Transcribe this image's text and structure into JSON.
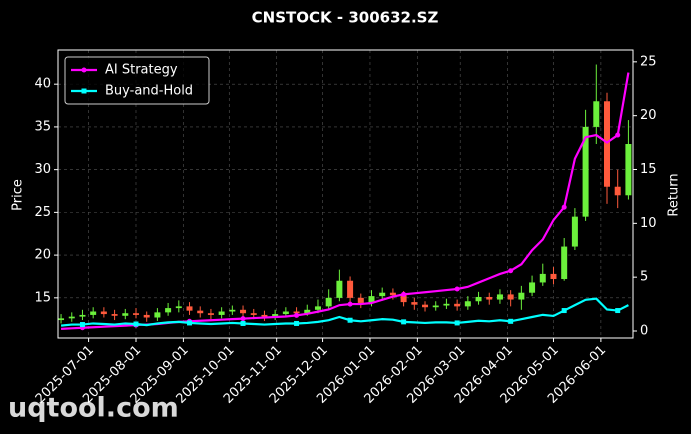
{
  "chart_data": {
    "type": "candlestick",
    "title": "CNSTOCK - 300632.SZ",
    "ylabel": "Price",
    "y2label": "Return",
    "watermark": "uqtool.com",
    "legend": "upper left",
    "grid": true,
    "up_color": "#6cf03c",
    "down_color": "#ff5a3c",
    "xlim": [
      "2025-06-11",
      "2026-06-22"
    ],
    "xticks": [
      "2025-07-01",
      "2025-08-01",
      "2025-09-01",
      "2025-10-01",
      "2025-11-01",
      "2025-12-01",
      "2026-01-01",
      "2026-02-01",
      "2026-03-01",
      "2026-04-01",
      "2026-05-01",
      "2026-06-01"
    ],
    "ylim": [
      10.3,
      44
    ],
    "yticks": [
      15,
      20,
      25,
      30,
      35,
      40
    ],
    "y2lim": [
      -0.65,
      26.1
    ],
    "y2ticks": [
      0,
      5,
      10,
      15,
      20,
      25
    ],
    "x": [
      "2025-06-13",
      "2025-06-20",
      "2025-06-27",
      "2025-07-04",
      "2025-07-11",
      "2025-07-18",
      "2025-07-25",
      "2025-08-01",
      "2025-08-08",
      "2025-08-15",
      "2025-08-22",
      "2025-08-29",
      "2025-09-05",
      "2025-09-12",
      "2025-09-19",
      "2025-09-26",
      "2025-10-03",
      "2025-10-10",
      "2025-10-17",
      "2025-10-24",
      "2025-10-31",
      "2025-11-07",
      "2025-11-14",
      "2025-11-21",
      "2025-11-28",
      "2025-12-05",
      "2025-12-12",
      "2025-12-19",
      "2025-12-26",
      "2026-01-02",
      "2026-01-09",
      "2026-01-16",
      "2026-01-23",
      "2026-01-30",
      "2026-02-06",
      "2026-02-13",
      "2026-02-20",
      "2026-02-27",
      "2026-03-06",
      "2026-03-13",
      "2026-03-20",
      "2026-03-27",
      "2026-04-03",
      "2026-04-10",
      "2026-04-17",
      "2026-04-24",
      "2026-05-01",
      "2026-05-08",
      "2026-05-15",
      "2026-05-22",
      "2026-05-29",
      "2026-06-05",
      "2026-06-12",
      "2026-06-19"
    ],
    "open": [
      12.4,
      12.6,
      12.8,
      13.0,
      13.4,
      13.1,
      12.9,
      13.2,
      13.0,
      12.7,
      13.3,
      13.8,
      14.0,
      13.5,
      13.2,
      13.0,
      13.4,
      13.6,
      13.2,
      13.0,
      12.8,
      13.1,
      13.4,
      13.2,
      13.6,
      14.0,
      15.0,
      17.0,
      15.0,
      14.4,
      15.2,
      15.6,
      15.3,
      14.5,
      14.2,
      13.9,
      14.1,
      14.3,
      14.0,
      14.6,
      15.1,
      14.8,
      15.4,
      14.8,
      15.6,
      16.8,
      17.8,
      17.2,
      21.0,
      24.5,
      35.0,
      38.0,
      28.0,
      27.0
    ],
    "high": [
      13.1,
      13.3,
      13.6,
      13.9,
      13.9,
      13.6,
      13.7,
      13.8,
      13.4,
      13.8,
      14.4,
      14.7,
      14.5,
      14.0,
      13.7,
      13.9,
      14.1,
      14.1,
      13.7,
      13.5,
      13.6,
      13.9,
      13.9,
      14.2,
      14.8,
      16.0,
      18.3,
      17.5,
      15.5,
      15.9,
      16.2,
      16.1,
      15.8,
      15.0,
      14.6,
      14.6,
      14.9,
      14.8,
      15.2,
      15.7,
      15.6,
      16.0,
      15.9,
      16.4,
      17.6,
      19.0,
      18.6,
      22.0,
      25.5,
      37.0,
      42.3,
      39.0,
      30.0,
      35.8
    ],
    "low": [
      12.0,
      12.2,
      12.4,
      12.6,
      12.7,
      12.4,
      12.5,
      12.6,
      12.2,
      12.3,
      12.9,
      13.3,
      13.0,
      12.7,
      12.5,
      12.6,
      13.0,
      12.8,
      12.5,
      12.3,
      12.4,
      12.7,
      12.8,
      12.9,
      13.2,
      13.6,
      14.6,
      14.2,
      13.8,
      14.0,
      14.8,
      14.8,
      14.0,
      13.6,
      13.4,
      13.5,
      13.7,
      13.5,
      13.6,
      14.2,
      14.2,
      14.3,
      14.0,
      13.6,
      15.2,
      16.4,
      16.6,
      17.0,
      20.6,
      24.0,
      33.0,
      26.0,
      25.5,
      26.5
    ],
    "close": [
      12.6,
      12.8,
      13.0,
      13.4,
      13.1,
      12.9,
      13.2,
      13.0,
      12.7,
      13.3,
      13.8,
      14.0,
      13.5,
      13.2,
      13.0,
      13.4,
      13.6,
      13.2,
      13.0,
      12.8,
      13.1,
      13.4,
      13.2,
      13.6,
      14.0,
      15.0,
      17.0,
      15.0,
      14.4,
      15.2,
      15.6,
      15.3,
      14.5,
      14.2,
      13.9,
      14.1,
      14.3,
      14.0,
      14.6,
      15.1,
      14.8,
      15.4,
      14.8,
      15.6,
      16.8,
      17.8,
      17.2,
      21.0,
      24.5,
      35.0,
      38.0,
      28.0,
      27.0,
      33.0
    ],
    "series": [
      {
        "name": "AI Strategy",
        "color": "#ff00ff",
        "marker": "circle",
        "axis": "y2",
        "values": [
          0.2,
          0.25,
          0.3,
          0.35,
          0.4,
          0.45,
          0.5,
          0.55,
          0.6,
          0.65,
          0.75,
          0.85,
          0.9,
          0.95,
          1.0,
          1.05,
          1.1,
          1.15,
          1.2,
          1.25,
          1.3,
          1.35,
          1.45,
          1.6,
          1.8,
          2.0,
          2.4,
          2.5,
          2.5,
          2.6,
          2.9,
          3.2,
          3.4,
          3.5,
          3.6,
          3.7,
          3.8,
          3.9,
          4.1,
          4.5,
          4.9,
          5.3,
          5.6,
          6.2,
          7.5,
          8.5,
          10.3,
          11.5,
          16.0,
          18.0,
          18.2,
          17.5,
          18.2,
          24.0
        ]
      },
      {
        "name": "Buy-and-Hold",
        "color": "#00ffff",
        "marker": "square",
        "axis": "y2",
        "values": [
          0.5,
          0.6,
          0.6,
          0.7,
          0.65,
          0.6,
          0.7,
          0.65,
          0.55,
          0.7,
          0.8,
          0.85,
          0.75,
          0.7,
          0.65,
          0.7,
          0.75,
          0.7,
          0.65,
          0.6,
          0.65,
          0.7,
          0.7,
          0.75,
          0.85,
          1.0,
          1.3,
          1.0,
          0.9,
          1.0,
          1.1,
          1.05,
          0.85,
          0.8,
          0.75,
          0.8,
          0.8,
          0.75,
          0.85,
          0.95,
          0.9,
          1.0,
          0.9,
          1.1,
          1.3,
          1.5,
          1.4,
          1.9,
          2.4,
          2.9,
          3.0,
          2.0,
          1.9,
          2.4
        ]
      }
    ]
  }
}
